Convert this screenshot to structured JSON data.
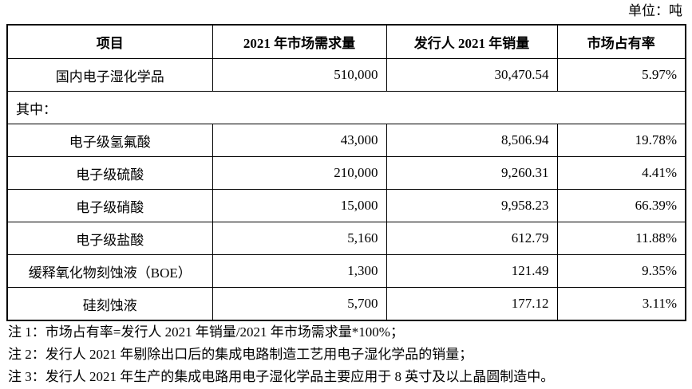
{
  "unit": "单位：吨",
  "table": {
    "header": [
      "项目",
      "2021 年市场需求量",
      "发行人 2021 年销量",
      "市场占有率"
    ],
    "rows": [
      [
        "国内电子湿化学品",
        "510,000",
        "30,470.54",
        "5.97%"
      ],
      [
        "其中："
      ],
      [
        "电子级氢氟酸",
        "43,000",
        "8,506.94",
        "19.78%"
      ],
      [
        "电子级硫酸",
        "210,000",
        "9,260.31",
        "4.41%"
      ],
      [
        "电子级硝酸",
        "15,000",
        "9,958.23",
        "66.39%"
      ],
      [
        "电子级盐酸",
        "5,160",
        "612.79",
        "11.88%"
      ],
      [
        "缓释氧化物刻蚀液（BOE）",
        "1,300",
        "121.49",
        "9.35%"
      ],
      [
        "硅刻蚀液",
        "5,700",
        "177.12",
        "3.11%"
      ]
    ]
  },
  "notes": [
    "注 1：市场占有率=发行人 2021 年销量/2021 年市场需求量*100%；",
    "注 2：发行人 2021 年剔除出口后的集成电路制造工艺用电子湿化学品的销量；",
    "注 3：发行人 2021 年生产的集成电路用电子湿化学品主要应用于 8 英寸及以上晶圆制造中。"
  ]
}
